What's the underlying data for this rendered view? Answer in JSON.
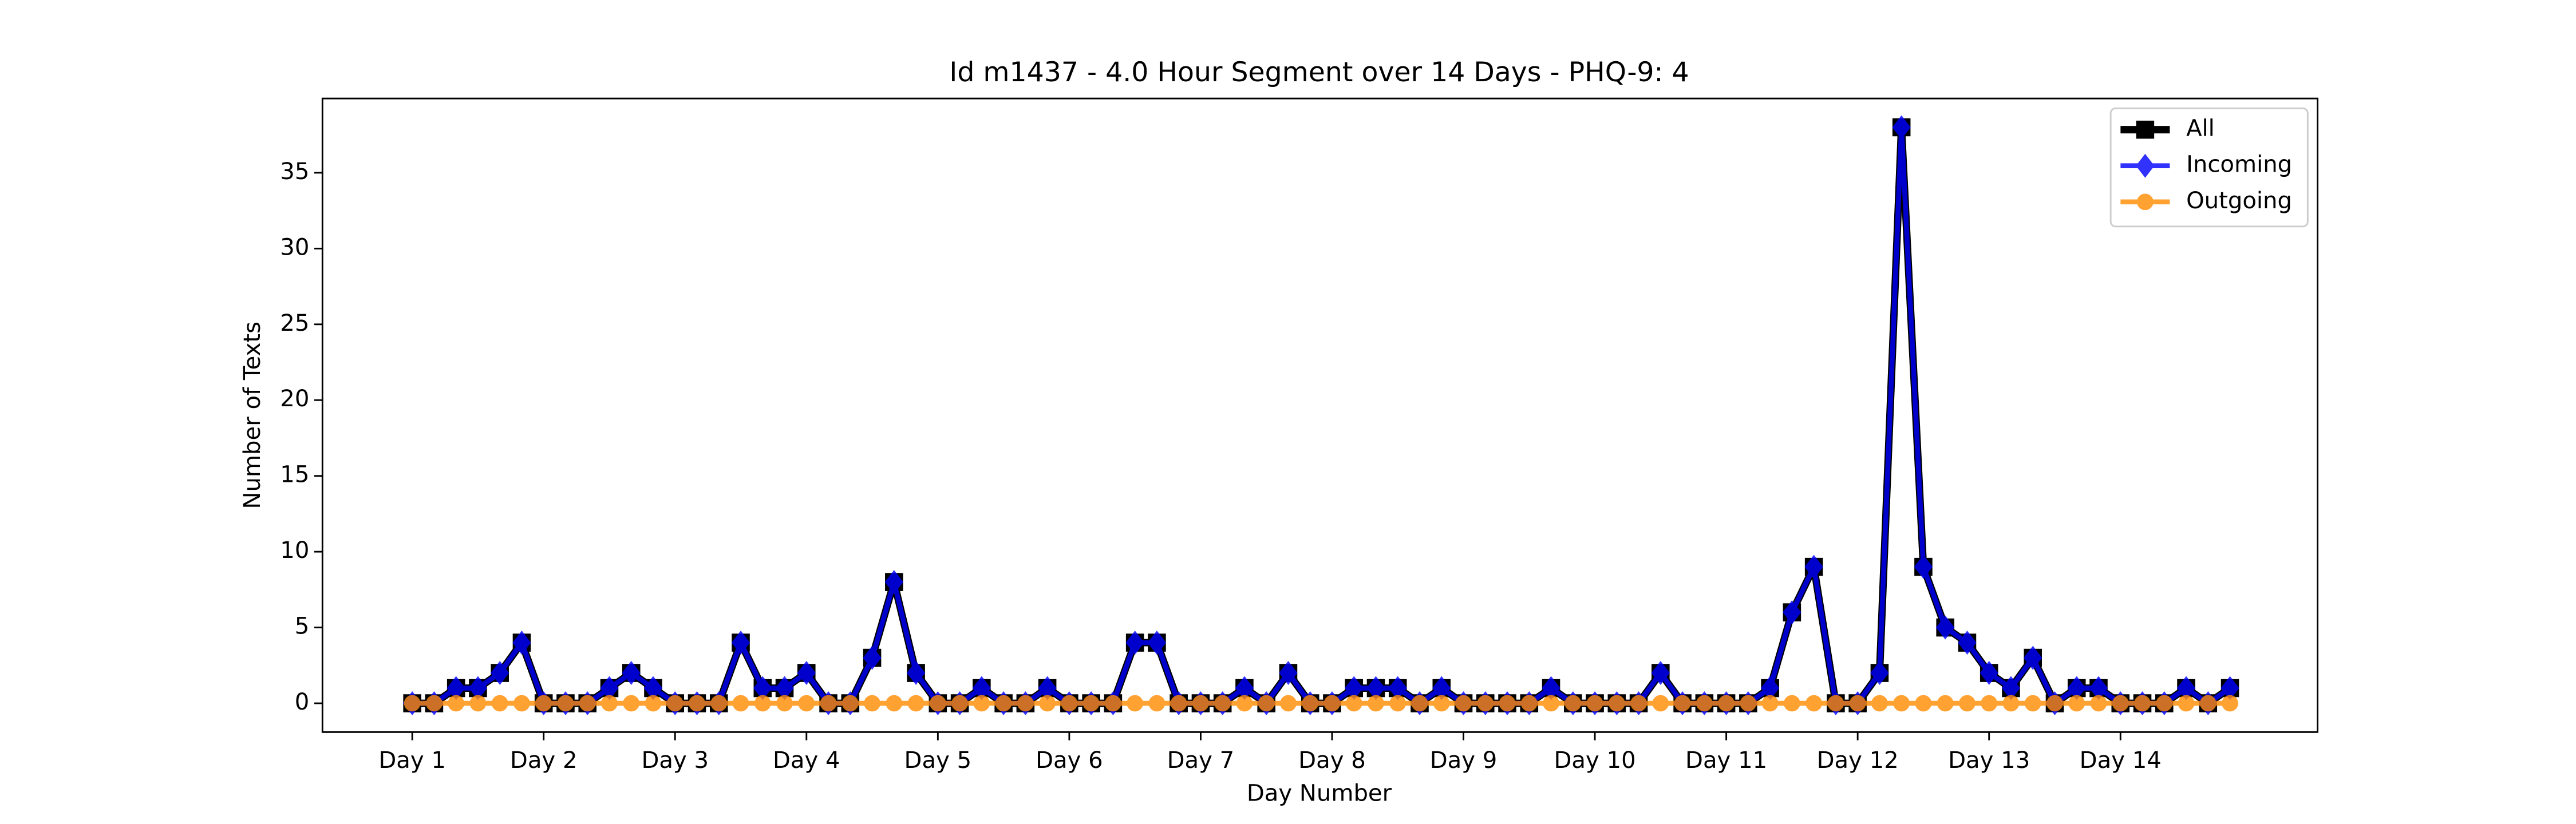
{
  "chart_data": {
    "type": "line",
    "title": "Id m1437 - 4.0 Hour Segment over 14 Days - PHQ-9: 4",
    "x_label": "Day Number",
    "y_label": "Number of Texts",
    "x": [
      0,
      1,
      2,
      3,
      4,
      5,
      6,
      7,
      8,
      9,
      10,
      11,
      12,
      13,
      14,
      15,
      16,
      17,
      18,
      19,
      20,
      21,
      22,
      23,
      24,
      25,
      26,
      27,
      28,
      29,
      30,
      31,
      32,
      33,
      34,
      35,
      36,
      37,
      38,
      39,
      40,
      41,
      42,
      43,
      44,
      45,
      46,
      47,
      48,
      49,
      50,
      51,
      52,
      53,
      54,
      55,
      56,
      57,
      58,
      59,
      60,
      61,
      62,
      63,
      64,
      65,
      66,
      67,
      68,
      69,
      70,
      71,
      72,
      73,
      74,
      75,
      76,
      77,
      78,
      79,
      80,
      81,
      82,
      83
    ],
    "series": [
      {
        "name": "All",
        "color": "#000000",
        "marker": "square",
        "values": [
          0,
          0,
          1,
          1,
          2,
          4,
          0,
          0,
          0,
          1,
          2,
          1,
          0,
          0,
          0,
          4,
          1,
          1,
          2,
          0,
          0,
          3,
          8,
          2,
          0,
          0,
          1,
          0,
          0,
          1,
          0,
          0,
          0,
          4,
          4,
          0,
          0,
          0,
          1,
          0,
          2,
          0,
          0,
          1,
          1,
          1,
          0,
          1,
          0,
          0,
          0,
          0,
          1,
          0,
          0,
          0,
          0,
          2,
          0,
          0,
          0,
          0,
          1,
          6,
          9,
          0,
          0,
          2,
          38,
          9,
          5,
          4,
          2,
          1,
          3,
          0,
          1,
          1,
          0,
          0,
          0,
          1,
          0,
          1
        ]
      },
      {
        "name": "Incoming",
        "color": "#0000ff",
        "marker": "diamond",
        "values": [
          0,
          0,
          1,
          1,
          2,
          4,
          0,
          0,
          0,
          1,
          2,
          1,
          0,
          0,
          0,
          4,
          1,
          1,
          2,
          0,
          0,
          3,
          8,
          2,
          0,
          0,
          1,
          0,
          0,
          1,
          0,
          0,
          0,
          4,
          4,
          0,
          0,
          0,
          1,
          0,
          2,
          0,
          0,
          1,
          1,
          1,
          0,
          1,
          0,
          0,
          0,
          0,
          1,
          0,
          0,
          0,
          0,
          2,
          0,
          0,
          0,
          0,
          1,
          6,
          9,
          0,
          0,
          2,
          38,
          9,
          5,
          4,
          2,
          1,
          3,
          0,
          1,
          1,
          0,
          0,
          0,
          1,
          0,
          1
        ]
      },
      {
        "name": "Outgoing",
        "color": "#ff8c00",
        "marker": "circle",
        "values": [
          0,
          0,
          0,
          0,
          0,
          0,
          0,
          0,
          0,
          0,
          0,
          0,
          0,
          0,
          0,
          0,
          0,
          0,
          0,
          0,
          0,
          0,
          0,
          0,
          0,
          0,
          0,
          0,
          0,
          0,
          0,
          0,
          0,
          0,
          0,
          0,
          0,
          0,
          0,
          0,
          0,
          0,
          0,
          0,
          0,
          0,
          0,
          0,
          0,
          0,
          0,
          0,
          0,
          0,
          0,
          0,
          0,
          0,
          0,
          0,
          0,
          0,
          0,
          0,
          0,
          0,
          0,
          0,
          0,
          0,
          0,
          0,
          0,
          0,
          0,
          0,
          0,
          0,
          0,
          0,
          0,
          0,
          0,
          0
        ]
      }
    ],
    "xlim": [
      -4.1,
      87
    ],
    "xticks": [
      {
        "value": 0,
        "label": "Day 1"
      },
      {
        "value": 6,
        "label": "Day 2"
      },
      {
        "value": 12,
        "label": "Day 3"
      },
      {
        "value": 18,
        "label": "Day 4"
      },
      {
        "value": 24,
        "label": "Day 5"
      },
      {
        "value": 30,
        "label": "Day 6"
      },
      {
        "value": 36,
        "label": "Day 7"
      },
      {
        "value": 42,
        "label": "Day 8"
      },
      {
        "value": 48,
        "label": "Day 9"
      },
      {
        "value": 54,
        "label": "Day 10"
      },
      {
        "value": 60,
        "label": "Day 11"
      },
      {
        "value": 66,
        "label": "Day 12"
      },
      {
        "value": 72,
        "label": "Day 13"
      },
      {
        "value": 78,
        "label": "Day 14"
      }
    ],
    "ylim": [
      -1.9,
      39.9
    ],
    "yticks": [
      0,
      5,
      10,
      15,
      20,
      25,
      30,
      35
    ],
    "legend": "upper right",
    "grid": false
  }
}
